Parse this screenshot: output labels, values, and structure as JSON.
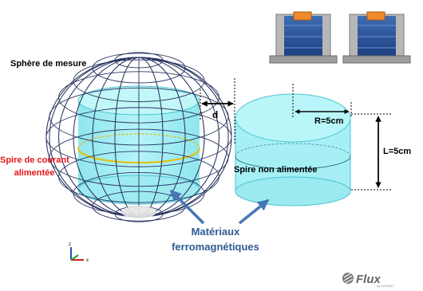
{
  "labels": {
    "sphere": "Sphère de mesure",
    "coil_powered_line1": "Spire de courant",
    "coil_powered_line2": "alimentée",
    "distance": "d",
    "radius": "R=5cm",
    "length": "L=5cm",
    "coil_unpowered": "Spire non alimentée",
    "materials_line1": "Matériaux",
    "materials_line2": "ferromagnétiques"
  },
  "axes": {
    "z": "z",
    "x": "x"
  },
  "logo": {
    "name": "Flux",
    "byline": "by CEDRAT"
  },
  "colors": {
    "cyan": "#a6f0f5",
    "cyan_stroke": "#4bc4d2",
    "sphere_lines": "#2a3560",
    "arrow_blue": "#4676b4",
    "red_text": "#e8141a",
    "coil_yellow": "#e5c000"
  }
}
